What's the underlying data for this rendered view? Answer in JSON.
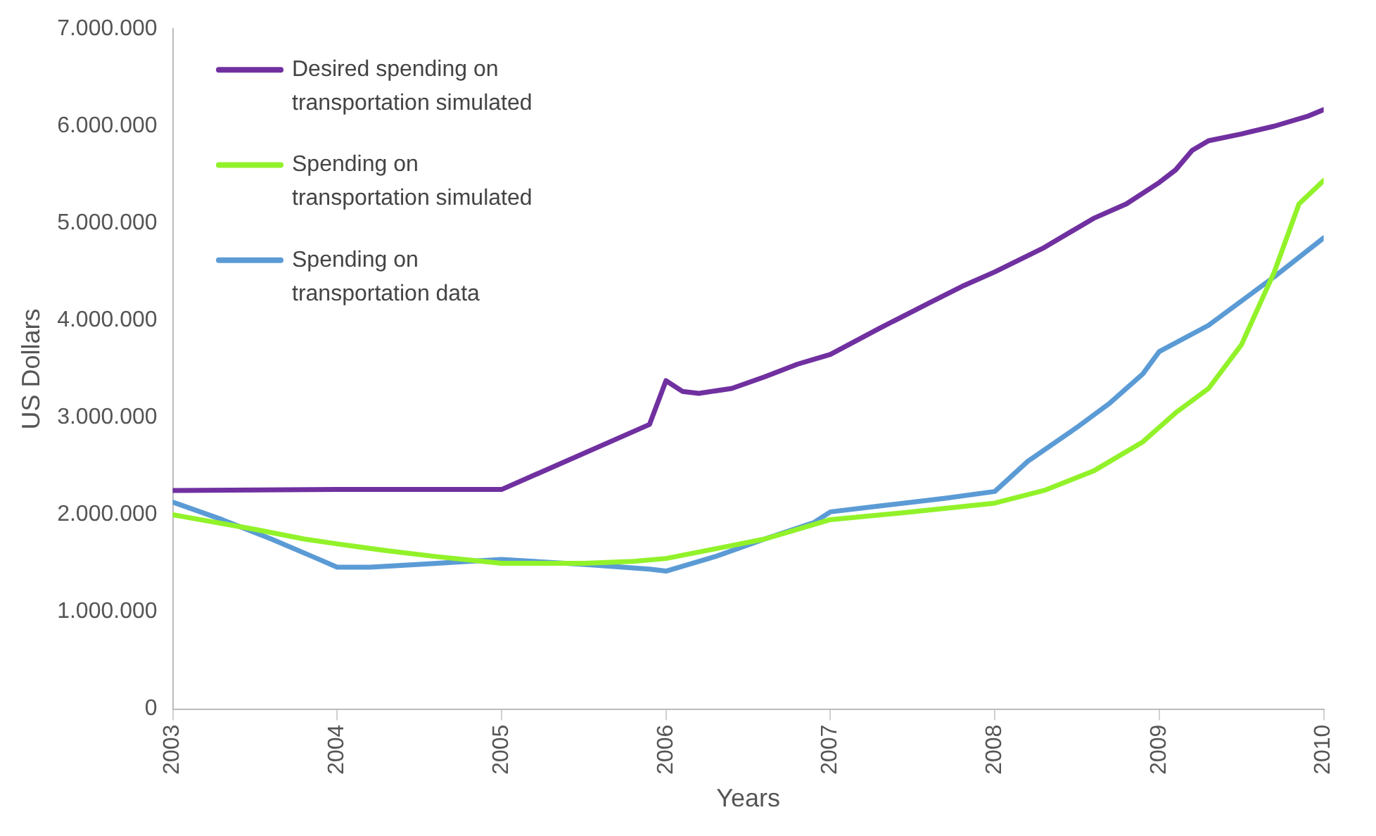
{
  "chart_data": {
    "type": "line",
    "xlabel": "Years",
    "ylabel": "US Dollars",
    "xlim": [
      2003,
      2010
    ],
    "xticks": [
      2003,
      2004,
      2005,
      2006,
      2007,
      2008,
      2009,
      2010
    ],
    "ylim": [
      0,
      7000000
    ],
    "yticks": [
      {
        "value": 0,
        "label": "0"
      },
      {
        "value": 1000000,
        "label": "1.000.000"
      },
      {
        "value": 2000000,
        "label": "2.000.000"
      },
      {
        "value": 3000000,
        "label": "3.000.000"
      },
      {
        "value": 4000000,
        "label": "4.000.000"
      },
      {
        "value": 5000000,
        "label": "5.000.000"
      },
      {
        "value": 6000000,
        "label": "6.000.000"
      },
      {
        "value": 7000000,
        "label": "7.000.000"
      }
    ],
    "grid": false,
    "legend": "top left",
    "marker": "none",
    "line_style": "solid",
    "series": [
      {
        "name": "Desired spending on transportation simulated",
        "color": "#7030a0",
        "x": [
          2003,
          2004,
          2005,
          2005.9,
          2006,
          2006.1,
          2006.2,
          2006.4,
          2006.6,
          2006.8,
          2007,
          2007.3,
          2007.6,
          2007.8,
          2008,
          2008.3,
          2008.6,
          2008.8,
          2009,
          2009.1,
          2009.2,
          2009.3,
          2009.5,
          2009.7,
          2009.9,
          2010
        ],
        "values": [
          2250000,
          2260000,
          2260000,
          2930000,
          3380000,
          3270000,
          3250000,
          3300000,
          3420000,
          3550000,
          3650000,
          3920000,
          4180000,
          4350000,
          4500000,
          4750000,
          5050000,
          5200000,
          5420000,
          5550000,
          5750000,
          5850000,
          5920000,
          6000000,
          6100000,
          6170000
        ]
      },
      {
        "name": "Spending on transportation simulated",
        "color": "#92f22a",
        "x": [
          2003,
          2003.5,
          2003.8,
          2004,
          2004.3,
          2004.6,
          2005,
          2005.5,
          2005.8,
          2006,
          2006.3,
          2006.6,
          2007,
          2007.5,
          2008,
          2008.3,
          2008.6,
          2008.9,
          2009.1,
          2009.3,
          2009.5,
          2009.7,
          2009.85,
          2010
        ],
        "values": [
          2000000,
          1850000,
          1750000,
          1700000,
          1630000,
          1570000,
          1500000,
          1500000,
          1520000,
          1550000,
          1650000,
          1750000,
          1950000,
          2030000,
          2120000,
          2250000,
          2450000,
          2750000,
          3050000,
          3300000,
          3750000,
          4500000,
          5200000,
          5440000
        ]
      },
      {
        "name": "Spending on transportation data",
        "color": "#5b9bd5",
        "x": [
          2003,
          2003.3,
          2003.6,
          2003.85,
          2004,
          2004.2,
          2004.5,
          2004.8,
          2005,
          2005.5,
          2005.9,
          2006,
          2006.3,
          2006.6,
          2006.9,
          2007,
          2007.3,
          2007.7,
          2008,
          2008.2,
          2008.5,
          2008.7,
          2008.9,
          2009,
          2009.3,
          2009.5,
          2009.7,
          2010
        ],
        "values": [
          2130000,
          1950000,
          1750000,
          1570000,
          1460000,
          1460000,
          1490000,
          1520000,
          1540000,
          1490000,
          1440000,
          1420000,
          1570000,
          1750000,
          1920000,
          2030000,
          2090000,
          2170000,
          2240000,
          2550000,
          2900000,
          3150000,
          3450000,
          3680000,
          3950000,
          4200000,
          4450000,
          4850000
        ]
      }
    ]
  }
}
